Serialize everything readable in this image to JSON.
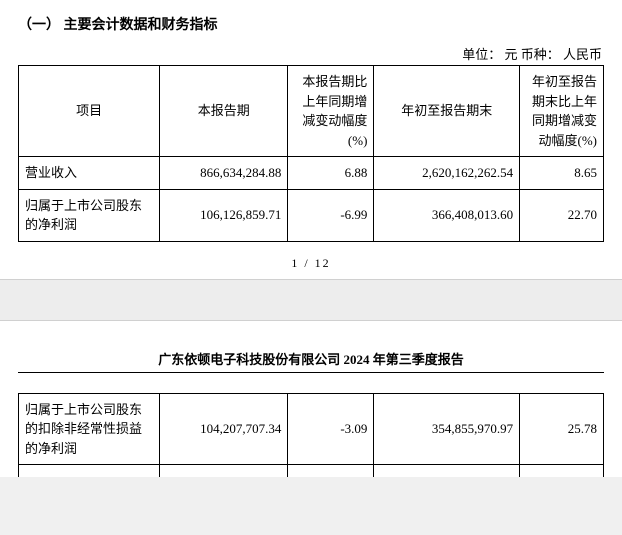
{
  "section_title": "（一） 主要会计数据和财务指标",
  "unit_line": "单位： 元   币种： 人民币",
  "table1": {
    "headers": {
      "item": "项目",
      "period": "本报告期",
      "pct1": "本报告期比上年同期增减变动幅度(%)",
      "ytd": "年初至报告期末",
      "pct2": "年初至报告期末比上年同期增减变动幅度(%)"
    },
    "rows": [
      {
        "item": "营业收入",
        "period": "866,634,284.88",
        "pct1": "6.88",
        "ytd": "2,620,162,262.54",
        "pct2": "8.65"
      },
      {
        "item": "归属于上市公司股东的净利润",
        "period": "106,126,859.71",
        "pct1": "-6.99",
        "ytd": "366,408,013.60",
        "pct2": "22.70"
      }
    ]
  },
  "page_indicator": "1 / 12",
  "report_header": "广东依顿电子科技股份有限公司 2024 年第三季度报告",
  "table2": {
    "rows": [
      {
        "item": "归属于上市公司股东的扣除非经常性损益的净利润",
        "period": "104,207,707.34",
        "pct1": "-3.09",
        "ytd": "354,855,970.97",
        "pct2": "25.78"
      }
    ]
  }
}
